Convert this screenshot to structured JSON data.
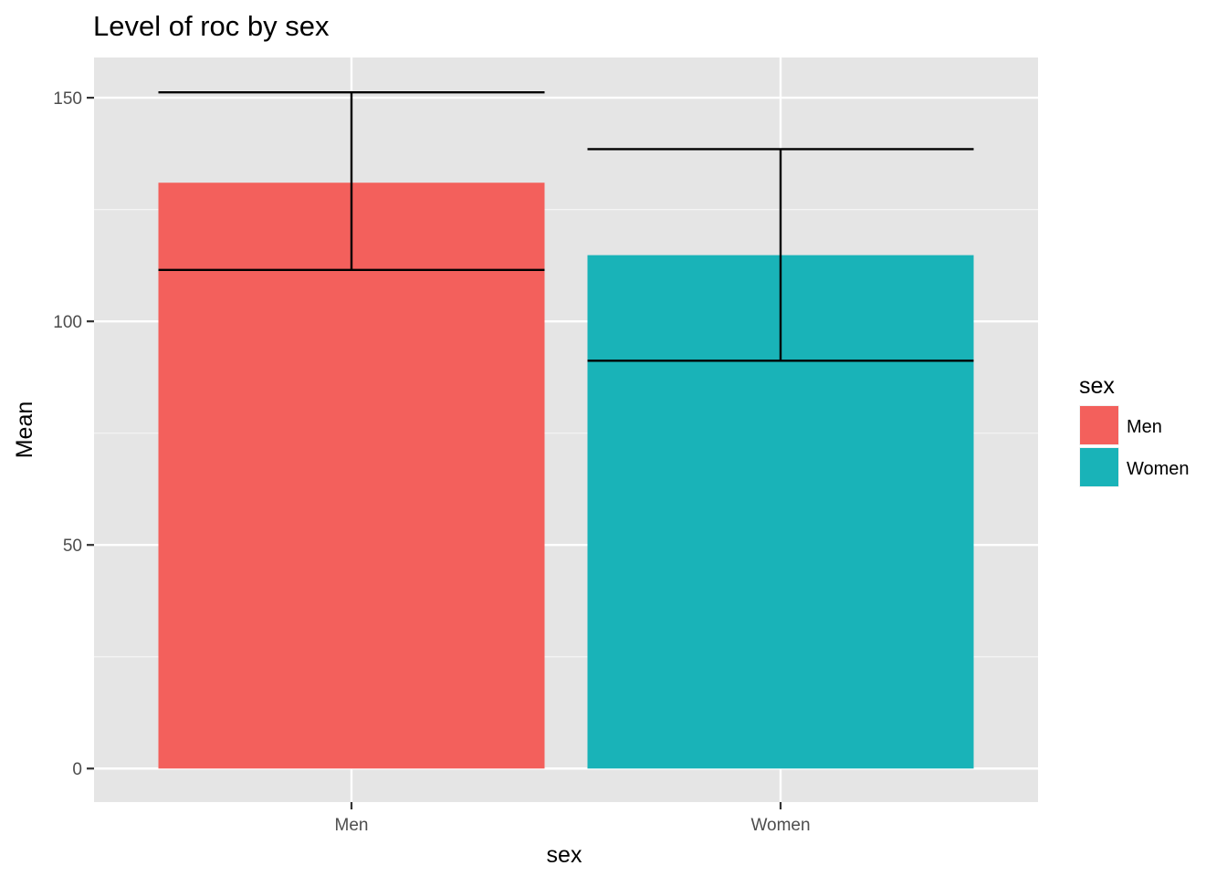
{
  "chart_data": {
    "type": "bar",
    "title": "Level of roc by sex",
    "xlabel": "sex",
    "ylabel": "Mean",
    "categories": [
      "Men",
      "Women"
    ],
    "values": [
      131,
      114.8
    ],
    "error_bars": [
      {
        "low": 111.5,
        "high": 151.2
      },
      {
        "low": 91.2,
        "high": 138.5
      }
    ],
    "colors": [
      "#F8766D",
      "#00BFC4"
    ],
    "bar_fill": [
      "#F3605C",
      "#19B3B8"
    ],
    "ylim": [
      -7.5,
      159
    ],
    "yticks": [
      0,
      50,
      100,
      150
    ],
    "ytick_labels": [
      "0",
      "50",
      "100",
      "150"
    ],
    "grid": true,
    "panel_background": "#E5E5E5",
    "legend": {
      "title": "sex",
      "position": "right",
      "entries": [
        "Men",
        "Women"
      ]
    }
  }
}
